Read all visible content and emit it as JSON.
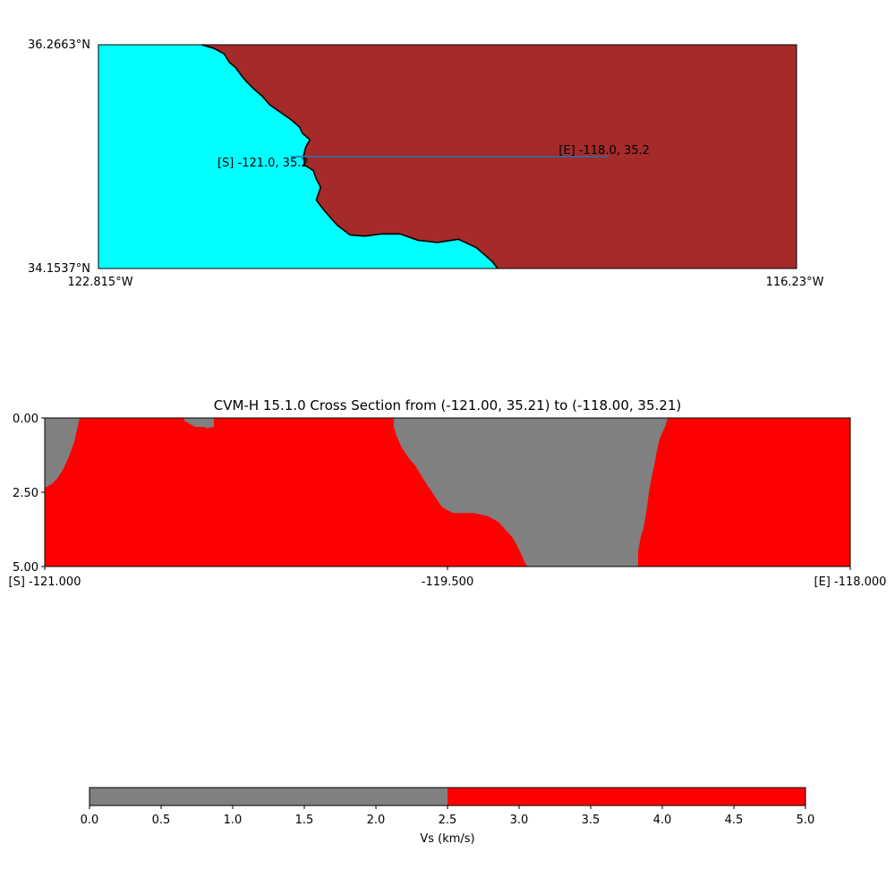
{
  "map": {
    "lat_top_label": "36.2663°N",
    "lat_bottom_label": "34.1537°N",
    "lon_left_label": "122.815°W",
    "lon_right_label": "116.23°W",
    "extent": {
      "lon_min": -122.815,
      "lon_max": -116.23,
      "lat_min": 34.1537,
      "lat_max": 36.2663
    },
    "start_label": "[S] -121.0, 35.2",
    "end_label": "[E] -118.0, 35.2",
    "start_point": {
      "lon": -121.0,
      "lat": 35.21
    },
    "end_point": {
      "lon": -118.0,
      "lat": 35.21
    },
    "colors": {
      "ocean": "#00ffff",
      "land": "#a52a2a",
      "coastline": "#000000",
      "profile_line": "#1f77b4"
    },
    "coastline": [
      [
        -121.84,
        36.2663
      ],
      [
        -121.72,
        36.23
      ],
      [
        -121.63,
        36.18
      ],
      [
        -121.58,
        36.1
      ],
      [
        -121.52,
        36.05
      ],
      [
        -121.47,
        35.98
      ],
      [
        -121.42,
        35.92
      ],
      [
        -121.35,
        35.85
      ],
      [
        -121.27,
        35.78
      ],
      [
        -121.2,
        35.7
      ],
      [
        -121.1,
        35.63
      ],
      [
        -121.0,
        35.56
      ],
      [
        -120.92,
        35.49
      ],
      [
        -120.89,
        35.43
      ],
      [
        -120.82,
        35.37
      ],
      [
        -120.86,
        35.3
      ],
      [
        -120.88,
        35.22
      ],
      [
        -120.87,
        35.13
      ],
      [
        -120.79,
        35.08
      ],
      [
        -120.76,
        35.0
      ],
      [
        -120.72,
        34.92
      ],
      [
        -120.76,
        34.8
      ],
      [
        -120.7,
        34.72
      ],
      [
        -120.64,
        34.65
      ],
      [
        -120.56,
        34.56
      ],
      [
        -120.44,
        34.47
      ],
      [
        -120.3,
        34.46
      ],
      [
        -120.15,
        34.48
      ],
      [
        -119.97,
        34.48
      ],
      [
        -119.8,
        34.42
      ],
      [
        -119.62,
        34.4
      ],
      [
        -119.42,
        34.43
      ],
      [
        -119.25,
        34.35
      ],
      [
        -119.1,
        34.22
      ],
      [
        -119.05,
        34.1537
      ]
    ]
  },
  "cross_section": {
    "title": "CVM-H 15.1.0 Cross Section from (-121.00, 35.21) to (-118.00, 35.21)",
    "x_tick_labels": [
      "[S] -121.000",
      "-119.500",
      "[E] -118.000"
    ],
    "x_ticks": [
      -121.0,
      -119.5,
      -118.0
    ],
    "y_tick_labels": [
      "0.00",
      "2.50",
      "5.00"
    ],
    "y_ticks": [
      0.0,
      2.5,
      5.0
    ]
  },
  "colorbar": {
    "label": "Vs (km/s)",
    "tick_labels": [
      "0.0",
      "0.5",
      "1.0",
      "1.5",
      "2.0",
      "2.5",
      "3.0",
      "3.5",
      "4.0",
      "4.5",
      "5.0"
    ],
    "range": [
      0.0,
      5.0
    ]
  },
  "chart_data": {
    "type": "heatmap",
    "title": "CVM-H 15.1.0 Cross Section from (-121.00, 35.21) to (-118.00, 35.21)",
    "xlabel": "",
    "ylabel": "",
    "xlim": [
      -121.0,
      -118.0
    ],
    "ylim": [
      5.0,
      0.0
    ],
    "color_bins": [
      {
        "range": [
          0.0,
          2.5
        ],
        "color": "#808080"
      },
      {
        "range": [
          2.5,
          5.0
        ],
        "color": "#ff0000"
      }
    ],
    "colorbar_label": "Vs (km/s)",
    "low_velocity_regions": [
      {
        "points": [
          [
            -121.0,
            0.0
          ],
          [
            -120.87,
            0.0
          ],
          [
            -120.88,
            0.4
          ],
          [
            -120.89,
            0.8
          ],
          [
            -120.91,
            1.3
          ],
          [
            -120.93,
            1.7
          ],
          [
            -120.95,
            2.0
          ],
          [
            -120.97,
            2.2
          ],
          [
            -120.99,
            2.3
          ],
          [
            -121.0,
            2.35
          ]
        ]
      },
      {
        "points": [
          [
            -120.48,
            0.0
          ],
          [
            -120.37,
            0.0
          ],
          [
            -120.37,
            0.3
          ],
          [
            -120.4,
            0.35
          ],
          [
            -120.4,
            0.3
          ],
          [
            -120.44,
            0.3
          ],
          [
            -120.46,
            0.2
          ],
          [
            -120.48,
            0.1
          ]
        ]
      },
      {
        "points": [
          [
            -119.7,
            0.0
          ],
          [
            -118.68,
            0.0
          ],
          [
            -118.69,
            0.3
          ],
          [
            -118.71,
            0.7
          ],
          [
            -118.72,
            1.1
          ],
          [
            -118.73,
            1.6
          ],
          [
            -118.74,
            2.0
          ],
          [
            -118.75,
            2.5
          ],
          [
            -118.76,
            3.2
          ],
          [
            -118.77,
            3.7
          ],
          [
            -118.78,
            4.0
          ],
          [
            -118.79,
            4.5
          ],
          [
            -118.79,
            5.0
          ],
          [
            -119.2,
            5.0
          ],
          [
            -119.21,
            4.9
          ],
          [
            -119.22,
            4.7
          ],
          [
            -119.24,
            4.3
          ],
          [
            -119.26,
            4.0
          ],
          [
            -119.28,
            3.8
          ],
          [
            -119.31,
            3.5
          ],
          [
            -119.35,
            3.3
          ],
          [
            -119.4,
            3.2
          ],
          [
            -119.48,
            3.2
          ],
          [
            -119.52,
            3.0
          ],
          [
            -119.55,
            2.6
          ],
          [
            -119.58,
            2.2
          ],
          [
            -119.6,
            1.9
          ],
          [
            -119.62,
            1.6
          ],
          [
            -119.64,
            1.4
          ],
          [
            -119.67,
            1.0
          ],
          [
            -119.69,
            0.6
          ],
          [
            -119.7,
            0.3
          ]
        ]
      }
    ]
  }
}
